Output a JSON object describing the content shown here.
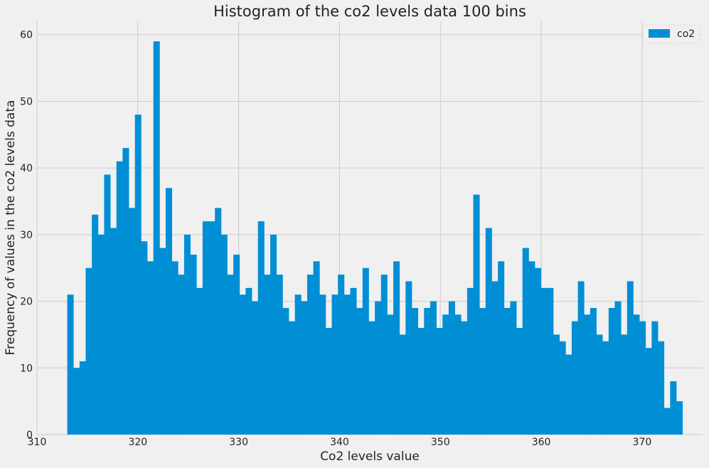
{
  "chart_data": {
    "type": "bar",
    "title": "Histogram of the co2 levels data 100 bins",
    "xlabel": "Co2 levels value",
    "ylabel": "Frequency of values in the co2 levels data",
    "xlim": [
      310,
      376
    ],
    "ylim": [
      0,
      62
    ],
    "x_ticks": [
      "310",
      "320",
      "330",
      "340",
      "350",
      "360",
      "370"
    ],
    "y_ticks": [
      "0",
      "10",
      "20",
      "30",
      "40",
      "50",
      "60"
    ],
    "x_tick_values": [
      310,
      320,
      330,
      340,
      350,
      360,
      370
    ],
    "y_tick_values": [
      0,
      10,
      20,
      30,
      40,
      50,
      60
    ],
    "grid": true,
    "legend_position": "top-right",
    "bin_start": 313.0,
    "bin_end": 374.0,
    "bar_color": "#008fd5",
    "series": [
      {
        "name": "co2",
        "values": [
          21,
          10,
          11,
          25,
          33,
          30,
          39,
          31,
          41,
          43,
          34,
          48,
          29,
          26,
          59,
          28,
          37,
          26,
          24,
          30,
          27,
          22,
          32,
          32,
          34,
          30,
          24,
          27,
          21,
          22,
          20,
          32,
          24,
          30,
          24,
          19,
          17,
          21,
          20,
          24,
          26,
          21,
          16,
          21,
          24,
          21,
          22,
          19,
          25,
          17,
          20,
          24,
          18,
          26,
          15,
          23,
          19,
          16,
          19,
          20,
          16,
          18,
          20,
          18,
          17,
          22,
          36,
          19,
          31,
          23,
          26,
          19,
          20,
          16,
          28,
          26,
          25,
          22,
          22,
          15,
          14,
          12,
          17,
          23,
          18,
          19,
          15,
          14,
          19,
          20,
          15,
          23,
          18,
          17,
          13,
          17,
          14,
          4,
          8,
          5
        ]
      }
    ]
  }
}
